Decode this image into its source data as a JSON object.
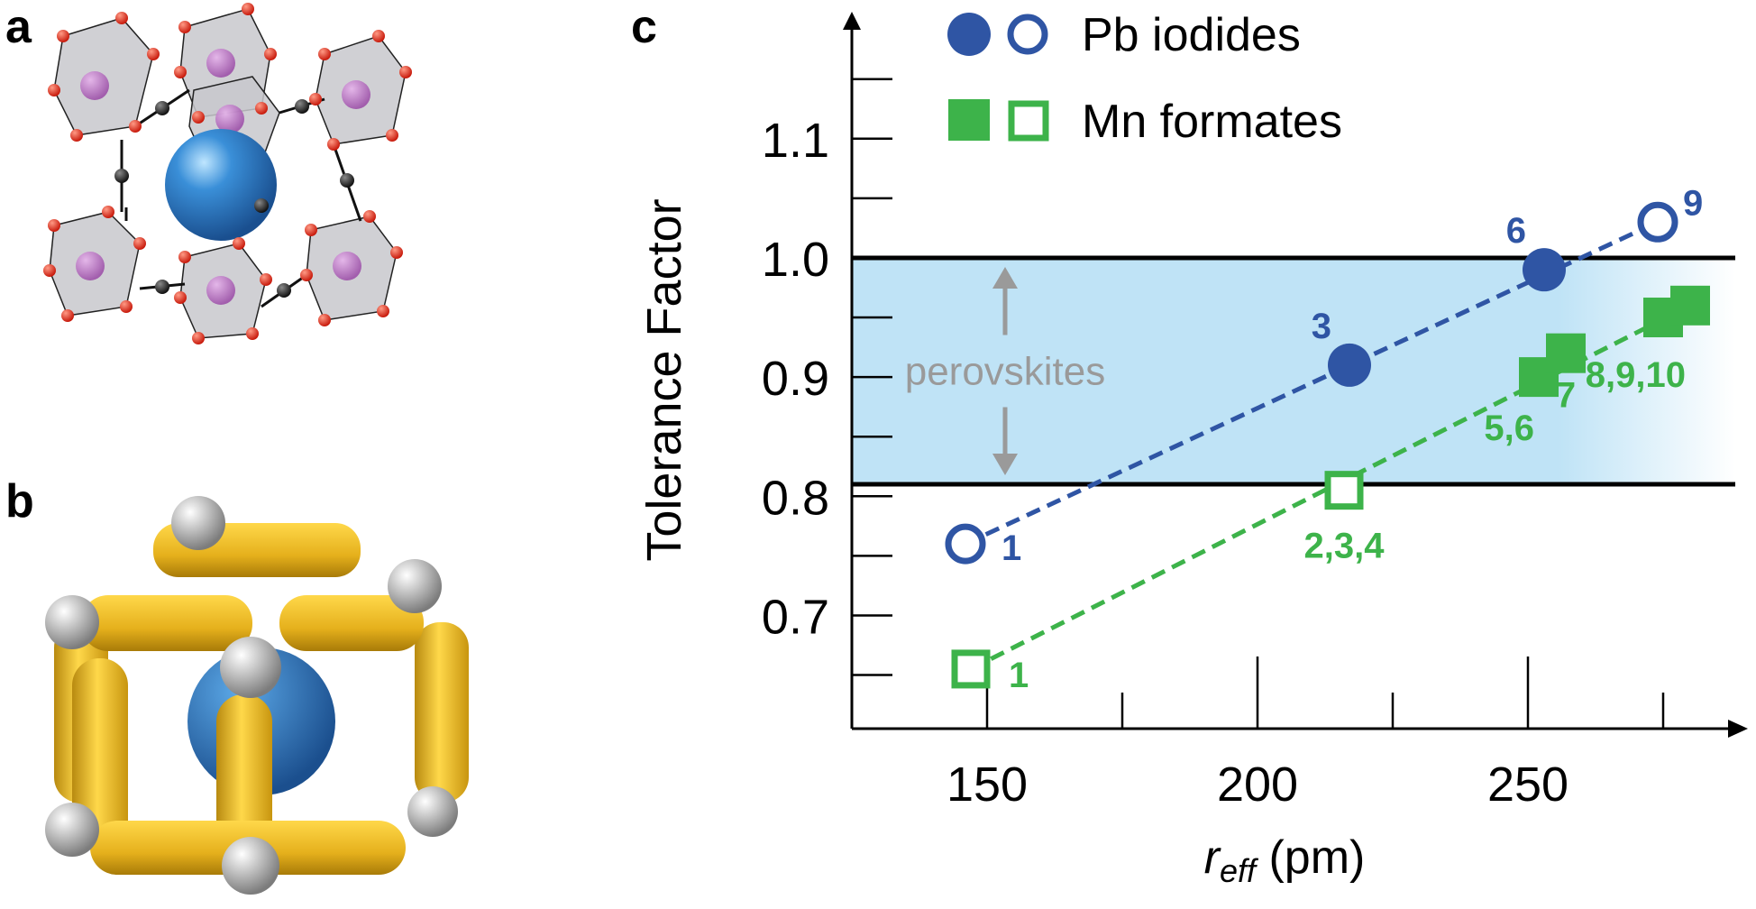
{
  "panels": {
    "a": "a",
    "b": "b",
    "c": "c"
  },
  "colors": {
    "blue": "#2f55a4",
    "green": "#3db34a",
    "band": "#bfe3f6",
    "gray": "#9a9a9a",
    "gold": "#f2c12e",
    "sphere_blue": "#2a78c8"
  },
  "chart_data": {
    "type": "scatter",
    "xlabel_main": "r",
    "xlabel_sub": "eff",
    "xlabel_unit": " (pm)",
    "ylabel": "Tolerance Factor",
    "xlim": [
      125,
      285
    ],
    "ylim": [
      0.605,
      1.205
    ],
    "x_ticks": [
      150,
      200,
      250
    ],
    "y_ticks": [
      0.7,
      0.8,
      0.9,
      1.0,
      1.1
    ],
    "y_tick_labels": [
      "0.7",
      "0.8",
      "0.9",
      "1.0",
      "1.1"
    ],
    "band": {
      "from": 0.81,
      "to": 1.0,
      "label": "perovskites"
    },
    "legend": [
      {
        "label": "Pb iodides",
        "marker": "circle",
        "color": "#2f55a4"
      },
      {
        "label": "Mn formates",
        "marker": "square",
        "color": "#3db34a"
      }
    ],
    "series": [
      {
        "name": "Pb iodides",
        "color": "#2f55a4",
        "marker": "circle",
        "points": [
          {
            "x": 146,
            "y": 0.76,
            "filled": false,
            "label": "1"
          },
          {
            "x": 217,
            "y": 0.91,
            "filled": true,
            "label": "3"
          },
          {
            "x": 253,
            "y": 0.99,
            "filled": true,
            "label": "6"
          },
          {
            "x": 274,
            "y": 1.03,
            "filled": false,
            "label": "9"
          }
        ]
      },
      {
        "name": "Mn formates",
        "color": "#3db34a",
        "marker": "square",
        "points": [
          {
            "x": 147,
            "y": 0.655,
            "filled": false,
            "label": "1"
          },
          {
            "x": 216,
            "y": 0.805,
            "filled": false,
            "label": "2,3,4"
          },
          {
            "x": 252,
            "y": 0.9,
            "filled": true,
            "label": "5,6"
          },
          {
            "x": 257,
            "y": 0.92,
            "filled": true,
            "label": "7"
          },
          {
            "x": 275,
            "y": 0.95,
            "filled": true,
            "label": ""
          },
          {
            "x": 280,
            "y": 0.96,
            "filled": true,
            "label": "8,9,10"
          }
        ]
      }
    ]
  }
}
